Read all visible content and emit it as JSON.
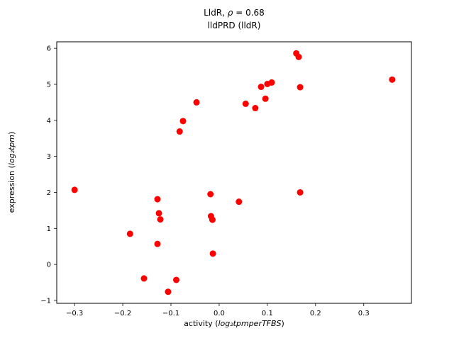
{
  "title": {
    "part1": "LldR, ",
    "rho": "ρ",
    "part2": " = 0.68",
    "line2": "lldPRD (lldR)"
  },
  "x_axis": {
    "label_prefix": "activity (",
    "label_math": "log₂tpmperTFBS",
    "label_suffix": ")",
    "ticks": [
      {
        "v": -0.3,
        "label": "−0.3"
      },
      {
        "v": -0.2,
        "label": "−0.2"
      },
      {
        "v": -0.1,
        "label": "−0.1"
      },
      {
        "v": 0.0,
        "label": "0.0"
      },
      {
        "v": 0.1,
        "label": "0.1"
      },
      {
        "v": 0.2,
        "label": "0.2"
      },
      {
        "v": 0.3,
        "label": "0.3"
      }
    ]
  },
  "y_axis": {
    "label_prefix": "expression (",
    "label_math": "log₂tpm",
    "label_suffix": ")",
    "ticks": [
      {
        "v": -1,
        "label": "−1"
      },
      {
        "v": 0,
        "label": "0"
      },
      {
        "v": 1,
        "label": "1"
      },
      {
        "v": 2,
        "label": "2"
      },
      {
        "v": 3,
        "label": "3"
      },
      {
        "v": 4,
        "label": "4"
      },
      {
        "v": 5,
        "label": "5"
      },
      {
        "v": 6,
        "label": "6"
      }
    ]
  },
  "chart_data": {
    "type": "scatter",
    "title": "LldR, ρ = 0.68\nlldPRD (lldR)",
    "xlabel": "activity (log₂tpmperTFBS)",
    "ylabel": "expression (log₂tpm)",
    "marker_color": "#ff0000",
    "marker_radius": 4.5,
    "xlim": [
      -0.337,
      0.399
    ],
    "ylim": [
      -1.08,
      6.18
    ],
    "grid": false,
    "legend": "none",
    "points": [
      [
        -0.3,
        2.07
      ],
      [
        -0.185,
        0.85
      ],
      [
        -0.156,
        -0.39
      ],
      [
        -0.128,
        1.81
      ],
      [
        -0.125,
        1.42
      ],
      [
        -0.122,
        1.25
      ],
      [
        -0.128,
        0.57
      ],
      [
        -0.106,
        -0.76
      ],
      [
        -0.089,
        -0.43
      ],
      [
        -0.082,
        3.69
      ],
      [
        -0.075,
        3.98
      ],
      [
        -0.047,
        4.5
      ],
      [
        -0.018,
        1.95
      ],
      [
        -0.017,
        1.34
      ],
      [
        -0.014,
        1.24
      ],
      [
        -0.013,
        0.3
      ],
      [
        0.041,
        1.74
      ],
      [
        0.055,
        4.46
      ],
      [
        0.075,
        4.34
      ],
      [
        0.087,
        4.93
      ],
      [
        0.096,
        4.6
      ],
      [
        0.1,
        5.01
      ],
      [
        0.109,
        5.05
      ],
      [
        0.16,
        5.86
      ],
      [
        0.165,
        5.76
      ],
      [
        0.168,
        4.92
      ],
      [
        0.168,
        2.0
      ],
      [
        0.359,
        5.13
      ]
    ]
  }
}
